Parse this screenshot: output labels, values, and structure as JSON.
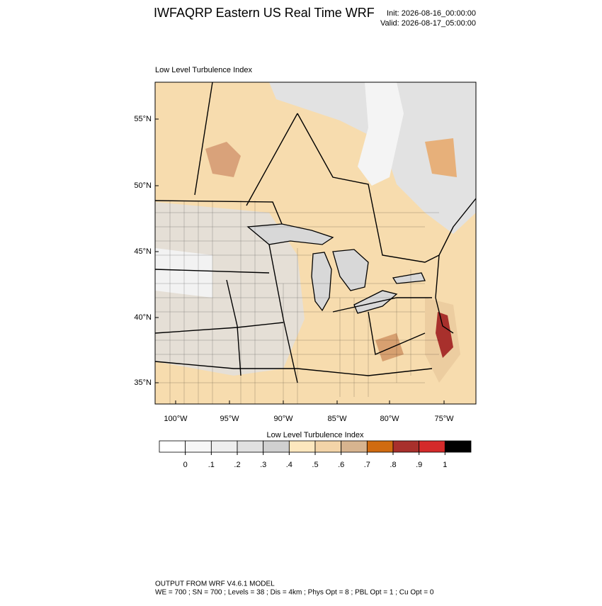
{
  "header": {
    "title": "IWFAQRP Eastern US Real Time WRF",
    "init": "Init: 2026-08-16_00:00:00",
    "valid": "Valid: 2026-08-17_05:00:00"
  },
  "map": {
    "subtitle": "Low Level Turbulence Index",
    "lat_labels": [
      "55°N",
      "50°N",
      "45°N",
      "40°N",
      "35°N"
    ],
    "lon_labels": [
      "100°W",
      "95°W",
      "90°W",
      "85°W",
      "80°W",
      "75°W"
    ]
  },
  "colorbar": {
    "title": "Low Level Turbulence Index",
    "colors": [
      "#ffffff",
      "#f7f7f7",
      "#eeeeee",
      "#e0e0e0",
      "#d0d0d0",
      "#fde7be",
      "#f3d4a8",
      "#d7b48f",
      "#d06b10",
      "#a8302c",
      "#d42a2a",
      "#000000"
    ],
    "ticks": [
      0,
      {
        "value": 0.1,
        "label": ".1"
      },
      {
        "value": 0.2,
        "label": ".2"
      },
      {
        "value": 0.3,
        "label": ".3"
      },
      {
        "value": 0.4,
        "label": ".4"
      },
      {
        "value": 0.5,
        "label": ".5"
      },
      {
        "value": 0.6,
        "label": ".6"
      },
      {
        "value": 0.7,
        "label": ".7"
      },
      {
        "value": 0.8,
        "label": ".8"
      },
      {
        "value": 0.9,
        "label": ".9"
      },
      1
    ]
  },
  "footer": {
    "lines": [
      "OUTPUT FROM WRF V4.6.1 MODEL",
      "WE = 700 ; SN = 700 ; Levels = 38 ; Dis = 4km ; Phys Opt = 8 ; PBL Opt = 1 ; Cu Opt = 0"
    ]
  }
}
